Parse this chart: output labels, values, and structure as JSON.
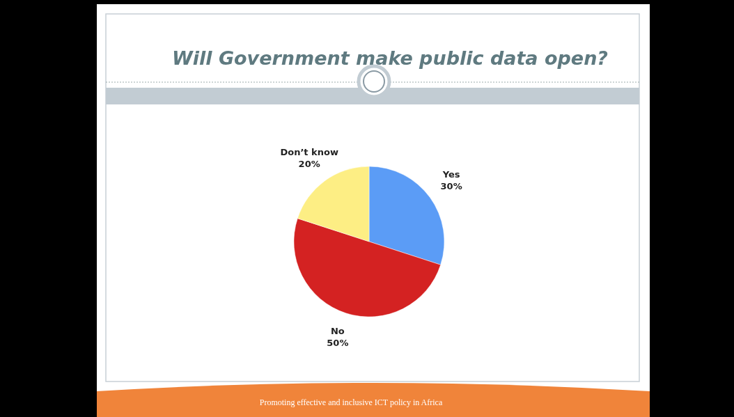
{
  "chart_data": {
    "type": "pie",
    "title": "Will Government make public data open?",
    "categories": [
      "Yes",
      "No",
      "Don’t know"
    ],
    "values": [
      30,
      50,
      20
    ],
    "value_labels": [
      "30%",
      "50%",
      "20%"
    ],
    "colors": [
      "#5b9cf6",
      "#d42222",
      "#fdee84"
    ],
    "annotations": [
      "Promoting effective and inclusive ICT policy in Africa"
    ]
  }
}
